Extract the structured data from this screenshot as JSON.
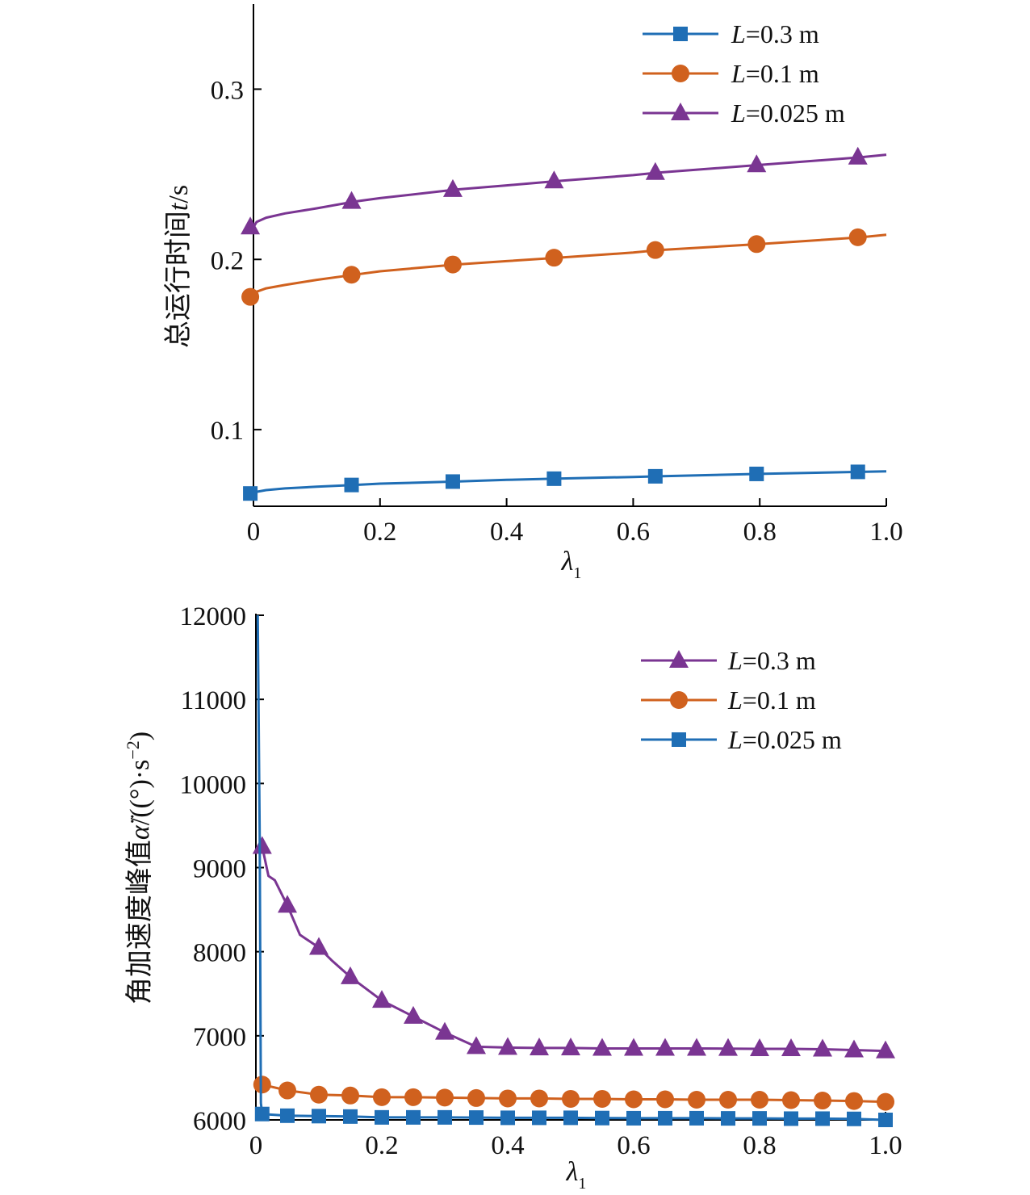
{
  "chart_data": [
    {
      "type": "line",
      "title": "",
      "xlabel": "λ",
      "xlabel_sub": "1",
      "ylabel": "总运行时间t/s",
      "xlim": [
        0,
        1.0
      ],
      "ylim": [
        0.055,
        0.35
      ],
      "xticks": [
        0,
        0.2,
        0.4,
        0.6,
        0.8,
        1.0
      ],
      "xtick_labels": [
        "0",
        "0.2",
        "0.4",
        "0.6",
        "0.8",
        "1.0"
      ],
      "yticks": [
        0.1,
        0.2,
        0.3
      ],
      "ytick_labels": [
        "0.1",
        "0.2",
        "0.3"
      ],
      "legend_position": "top-right",
      "series": [
        {
          "name": "L=0.3 m",
          "label_var": "L",
          "label_rest": "=0.3 m",
          "color": "#1f6eb5",
          "marker": "square",
          "x": [
            0,
            0.005,
            0.02,
            0.05,
            0.1,
            0.16,
            0.2,
            0.32,
            0.4,
            0.48,
            0.6,
            0.64,
            0.8,
            0.96,
            1.0
          ],
          "y": [
            0.0625,
            0.0635,
            0.0645,
            0.0655,
            0.0665,
            0.0675,
            0.0683,
            0.0695,
            0.0705,
            0.0712,
            0.0722,
            0.0726,
            0.074,
            0.0752,
            0.0755
          ],
          "marker_x": [
            -0.005,
            0.155,
            0.315,
            0.475,
            0.635,
            0.795,
            0.955
          ],
          "marker_y": [
            0.0625,
            0.0675,
            0.0695,
            0.0712,
            0.0726,
            0.074,
            0.0752
          ]
        },
        {
          "name": "L=0.1 m",
          "label_var": "L",
          "label_rest": "=0.1 m",
          "color": "#d0611e",
          "marker": "circle",
          "x": [
            0,
            0.005,
            0.02,
            0.05,
            0.1,
            0.16,
            0.2,
            0.32,
            0.4,
            0.48,
            0.6,
            0.64,
            0.8,
            0.96,
            1.0
          ],
          "y": [
            0.178,
            0.181,
            0.183,
            0.185,
            0.188,
            0.191,
            0.193,
            0.197,
            0.199,
            0.201,
            0.204,
            0.2055,
            0.209,
            0.213,
            0.2145
          ],
          "marker_x": [
            -0.005,
            0.155,
            0.315,
            0.475,
            0.635,
            0.795,
            0.955
          ],
          "marker_y": [
            0.178,
            0.191,
            0.197,
            0.201,
            0.2055,
            0.209,
            0.213
          ]
        },
        {
          "name": "L=0.025 m",
          "label_var": "L",
          "label_rest": "=0.025 m",
          "color": "#7a3592",
          "marker": "triangle",
          "x": [
            0,
            0.005,
            0.02,
            0.05,
            0.1,
            0.16,
            0.2,
            0.32,
            0.4,
            0.48,
            0.6,
            0.64,
            0.8,
            0.96,
            1.0
          ],
          "y": [
            0.219,
            0.222,
            0.2245,
            0.227,
            0.23,
            0.234,
            0.236,
            0.241,
            0.2435,
            0.246,
            0.2495,
            0.251,
            0.2555,
            0.26,
            0.2615
          ],
          "marker_x": [
            -0.005,
            0.155,
            0.315,
            0.475,
            0.635,
            0.795,
            0.955
          ],
          "marker_y": [
            0.219,
            0.234,
            0.241,
            0.246,
            0.251,
            0.2555,
            0.26
          ]
        }
      ]
    },
    {
      "type": "line",
      "title": "",
      "xlabel": "λ",
      "xlabel_sub": "1",
      "ylabel_main": "角加速度峰值",
      "ylabel_var": "α̈",
      "ylabel_unit": "/((°)·s",
      "ylabel_exp": "−2",
      "ylabel_close": ")",
      "xlim": [
        0,
        1.0
      ],
      "ylim": [
        6000,
        12000
      ],
      "xticks": [
        0,
        0.2,
        0.4,
        0.6,
        0.8,
        1.0
      ],
      "xtick_labels": [
        "0",
        "0.2",
        "0.4",
        "0.6",
        "0.8",
        "1.0"
      ],
      "yticks": [
        6000,
        7000,
        8000,
        9000,
        10000,
        11000,
        12000
      ],
      "ytick_labels": [
        "6000",
        "7000",
        "8000",
        "9000",
        "10000",
        "11000",
        "12000"
      ],
      "legend_position": "top-right",
      "series": [
        {
          "name": "L=0.3 m",
          "label_var": "L",
          "label_rest": "=0.3 m",
          "color": "#7a3592",
          "marker": "triangle",
          "x": [
            0.01,
            0.02,
            0.03,
            0.05,
            0.07,
            0.1,
            0.12,
            0.15,
            0.2,
            0.25,
            0.3,
            0.35,
            0.4,
            0.45,
            0.5,
            0.55,
            0.6,
            0.65,
            0.7,
            0.75,
            0.8,
            0.85,
            0.9,
            0.95,
            1.0
          ],
          "y": [
            9250,
            8900,
            8850,
            8550,
            8200,
            8050,
            7900,
            7700,
            7420,
            7230,
            7040,
            6870,
            6860,
            6855,
            6855,
            6850,
            6850,
            6850,
            6850,
            6848,
            6845,
            6845,
            6840,
            6830,
            6820
          ],
          "marker_x": [
            0.01,
            0.05,
            0.1,
            0.15,
            0.2,
            0.25,
            0.3,
            0.35,
            0.4,
            0.45,
            0.5,
            0.55,
            0.6,
            0.65,
            0.7,
            0.75,
            0.8,
            0.85,
            0.9,
            0.95,
            1.0
          ],
          "marker_y": [
            9250,
            8550,
            8050,
            7700,
            7420,
            7230,
            7040,
            6870,
            6860,
            6855,
            6855,
            6850,
            6850,
            6850,
            6850,
            6848,
            6845,
            6845,
            6840,
            6830,
            6820
          ]
        },
        {
          "name": "L=0.1 m",
          "label_var": "L",
          "label_rest": "=0.1 m",
          "color": "#d0611e",
          "marker": "circle",
          "x": [
            0.01,
            0.05,
            0.1,
            0.15,
            0.2,
            0.25,
            0.3,
            0.35,
            0.4,
            0.45,
            0.5,
            0.55,
            0.6,
            0.65,
            0.7,
            0.75,
            0.8,
            0.85,
            0.9,
            0.95,
            1.0
          ],
          "y": [
            6420,
            6350,
            6300,
            6290,
            6270,
            6270,
            6265,
            6260,
            6255,
            6255,
            6250,
            6250,
            6245,
            6245,
            6240,
            6240,
            6240,
            6235,
            6230,
            6225,
            6215
          ],
          "marker_x": [
            0.01,
            0.05,
            0.1,
            0.15,
            0.2,
            0.25,
            0.3,
            0.35,
            0.4,
            0.45,
            0.5,
            0.55,
            0.6,
            0.65,
            0.7,
            0.75,
            0.8,
            0.85,
            0.9,
            0.95,
            1.0
          ],
          "marker_y": [
            6420,
            6350,
            6300,
            6290,
            6270,
            6270,
            6265,
            6260,
            6255,
            6255,
            6250,
            6250,
            6245,
            6245,
            6240,
            6240,
            6240,
            6235,
            6230,
            6225,
            6215
          ]
        },
        {
          "name": "L=0.025 m",
          "label_var": "L",
          "label_rest": "=0.025 m",
          "color": "#1f6eb5",
          "marker": "square",
          "x": [
            0.003,
            0.006,
            0.008,
            0.01,
            0.05,
            0.1,
            0.15,
            0.2,
            0.25,
            0.3,
            0.35,
            0.4,
            0.45,
            0.5,
            0.55,
            0.6,
            0.65,
            0.7,
            0.75,
            0.8,
            0.85,
            0.9,
            0.95,
            1.0
          ],
          "y": [
            12000,
            9400,
            6200,
            6070,
            6050,
            6045,
            6040,
            6030,
            6030,
            6030,
            6028,
            6025,
            6025,
            6025,
            6022,
            6020,
            6020,
            6020,
            6018,
            6018,
            6015,
            6015,
            6012,
            6000
          ],
          "marker_x": [
            0.01,
            0.05,
            0.1,
            0.15,
            0.2,
            0.25,
            0.3,
            0.35,
            0.4,
            0.45,
            0.5,
            0.55,
            0.6,
            0.65,
            0.7,
            0.75,
            0.8,
            0.85,
            0.9,
            0.95,
            1.0
          ],
          "marker_y": [
            6070,
            6050,
            6045,
            6040,
            6030,
            6030,
            6030,
            6028,
            6025,
            6025,
            6025,
            6022,
            6020,
            6020,
            6020,
            6018,
            6018,
            6015,
            6015,
            6012,
            6000
          ]
        }
      ]
    }
  ]
}
